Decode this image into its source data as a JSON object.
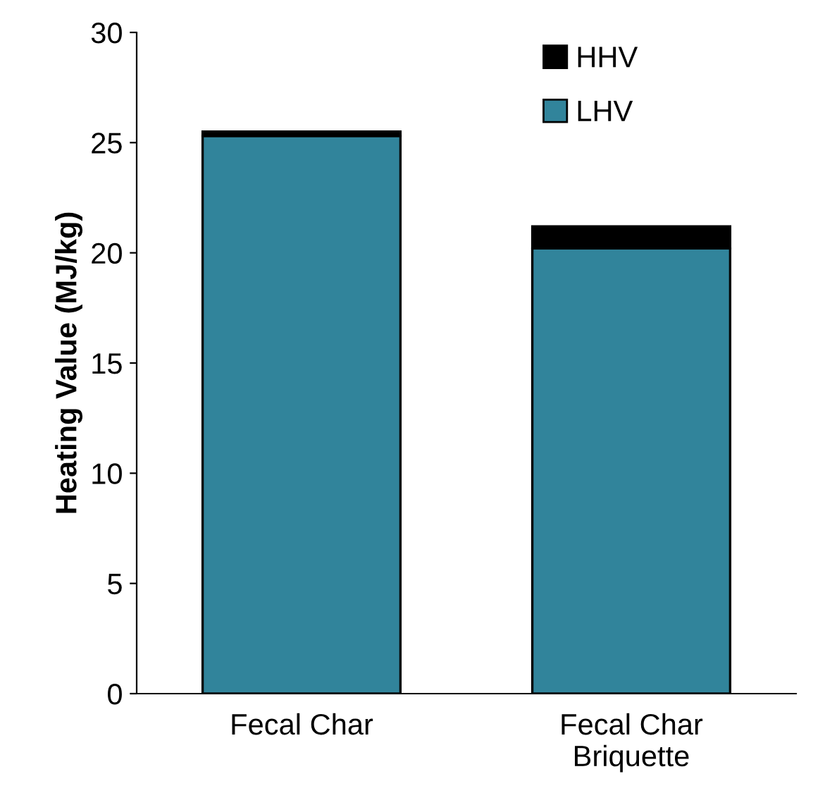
{
  "chart_data": {
    "type": "bar",
    "stacked": true,
    "ylabel": "Heating Value (MJ/kg)",
    "categories": [
      "Fecal Char",
      "Fecal Char\nBriquette"
    ],
    "series": [
      {
        "name": "LHV",
        "color": "#31849b",
        "values": [
          25.3,
          20.2
        ]
      },
      {
        "name": "HHV",
        "color": "#000000",
        "values": [
          0.2,
          1.0
        ]
      }
    ],
    "ylim": [
      0,
      30
    ],
    "yticks": [
      0,
      5,
      10,
      15,
      20,
      25,
      30
    ],
    "grid": false,
    "legend": "top right"
  }
}
